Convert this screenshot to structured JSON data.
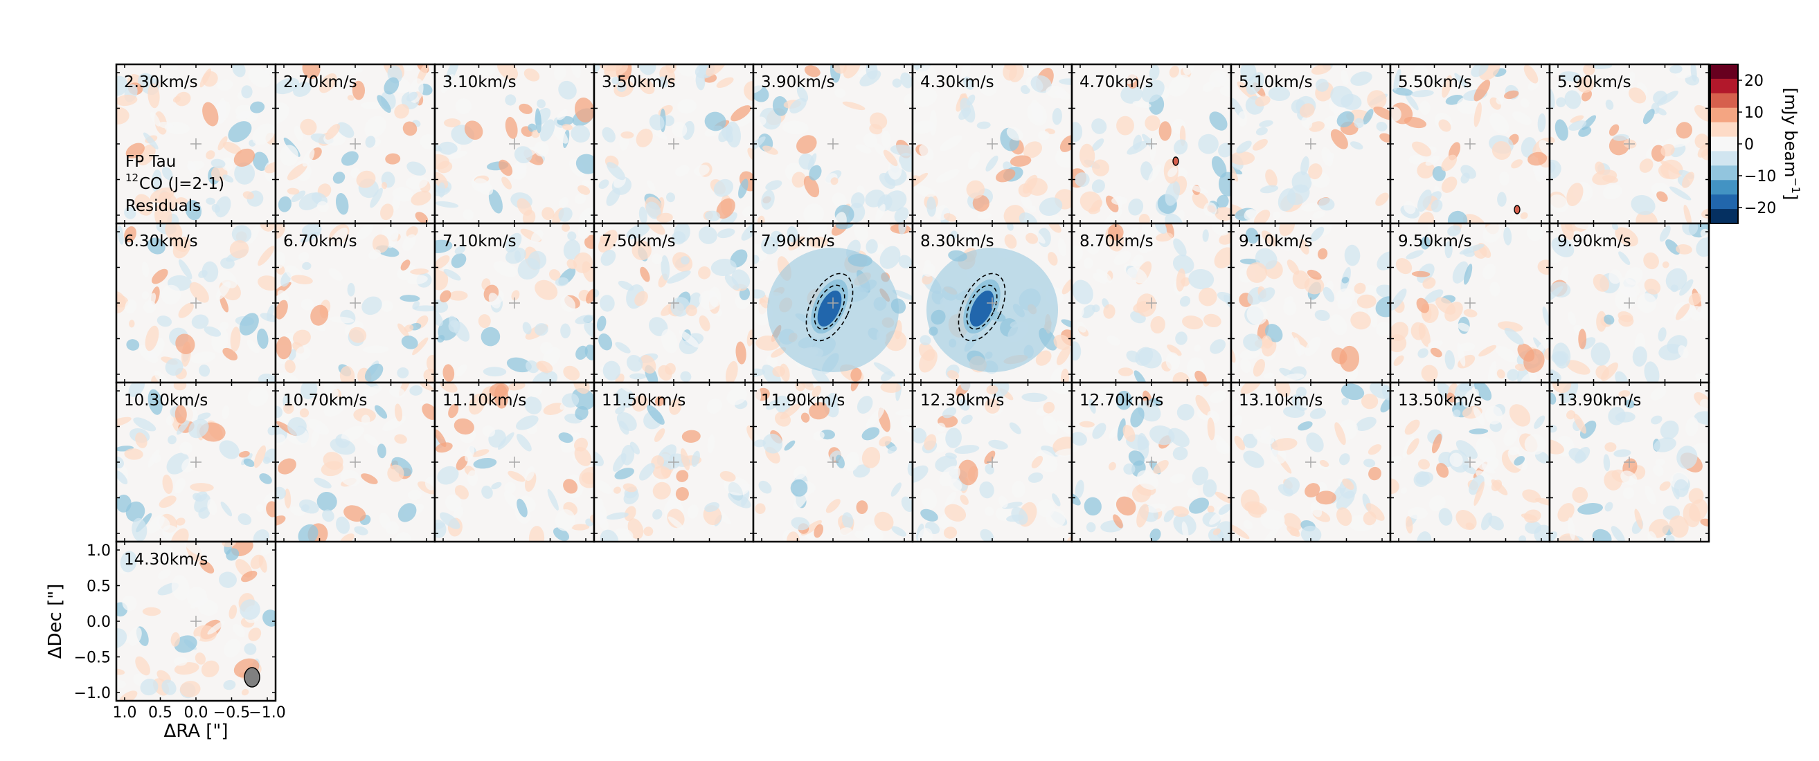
{
  "chart_data": {
    "type": "heatmap",
    "title": "",
    "panel_labels": [
      "2.30km/s",
      "2.70km/s",
      "3.10km/s",
      "3.50km/s",
      "3.90km/s",
      "4.30km/s",
      "4.70km/s",
      "5.10km/s",
      "5.50km/s",
      "5.90km/s",
      "6.30km/s",
      "6.70km/s",
      "7.10km/s",
      "7.50km/s",
      "7.90km/s",
      "8.30km/s",
      "8.70km/s",
      "9.10km/s",
      "9.50km/s",
      "9.90km/s",
      "10.30km/s",
      "10.70km/s",
      "11.10km/s",
      "11.50km/s",
      "11.90km/s",
      "12.30km/s",
      "12.70km/s",
      "13.10km/s",
      "13.50km/s",
      "13.90km/s",
      "14.30km/s"
    ],
    "annotation": {
      "line1": "FP Tau",
      "line2_sup": "12",
      "line2": "CO (J=2-1)",
      "line3": "Residuals"
    },
    "xlabel": "ΔRA [\"]",
    "ylabel": "ΔDec [\"]",
    "xlim": [
      1.0,
      -1.0
    ],
    "ylim": [
      -1.0,
      1.0
    ],
    "xticks": [
      "1.0",
      "0.5",
      "0.0",
      "−0.5",
      "−1.0"
    ],
    "xtick_values": [
      1.0,
      0.5,
      0.0,
      -0.5,
      -1.0
    ],
    "yticks": [
      "1.0",
      "0.5",
      "0.0",
      "−0.5",
      "−1.0"
    ],
    "ytick_values": [
      1.0,
      0.5,
      0.0,
      -0.5,
      -1.0
    ],
    "colorbar": {
      "label": "[mJy beam",
      "label_sup": "−1",
      "label_end": "]",
      "range": [
        -25,
        25
      ],
      "ticks": [
        20,
        10,
        0,
        -10,
        -20
      ],
      "tick_labels": [
        "20",
        "10",
        "0",
        "−10",
        "−20"
      ],
      "colormap": "RdBu_r",
      "colors": [
        "#053061",
        "#2166ac",
        "#4393c3",
        "#92c5de",
        "#d1e5f0",
        "#f7f7f7",
        "#fddbc7",
        "#f4a582",
        "#d6604d",
        "#b2182b",
        "#67001f"
      ]
    },
    "center_marker": "plus",
    "beam": {
      "shape": "ellipse",
      "color": "#808080"
    },
    "features": [
      {
        "panel": "7.90km/s",
        "description": "negative residual near center",
        "peak_approx": -20,
        "contour_levels": [
          "dashed",
          "dashed"
        ]
      },
      {
        "panel": "8.30km/s",
        "description": "negative residual near center",
        "peak_approx": -18,
        "contour_levels": [
          "dashed",
          "dashed"
        ]
      },
      {
        "panel": "4.70km/s",
        "description": "small positive residual",
        "contour_levels": [
          "solid"
        ]
      },
      {
        "panel": "5.50km/s",
        "description": "small positive residual",
        "contour_levels": [
          "solid"
        ]
      }
    ],
    "grid": false,
    "legend": "none"
  }
}
